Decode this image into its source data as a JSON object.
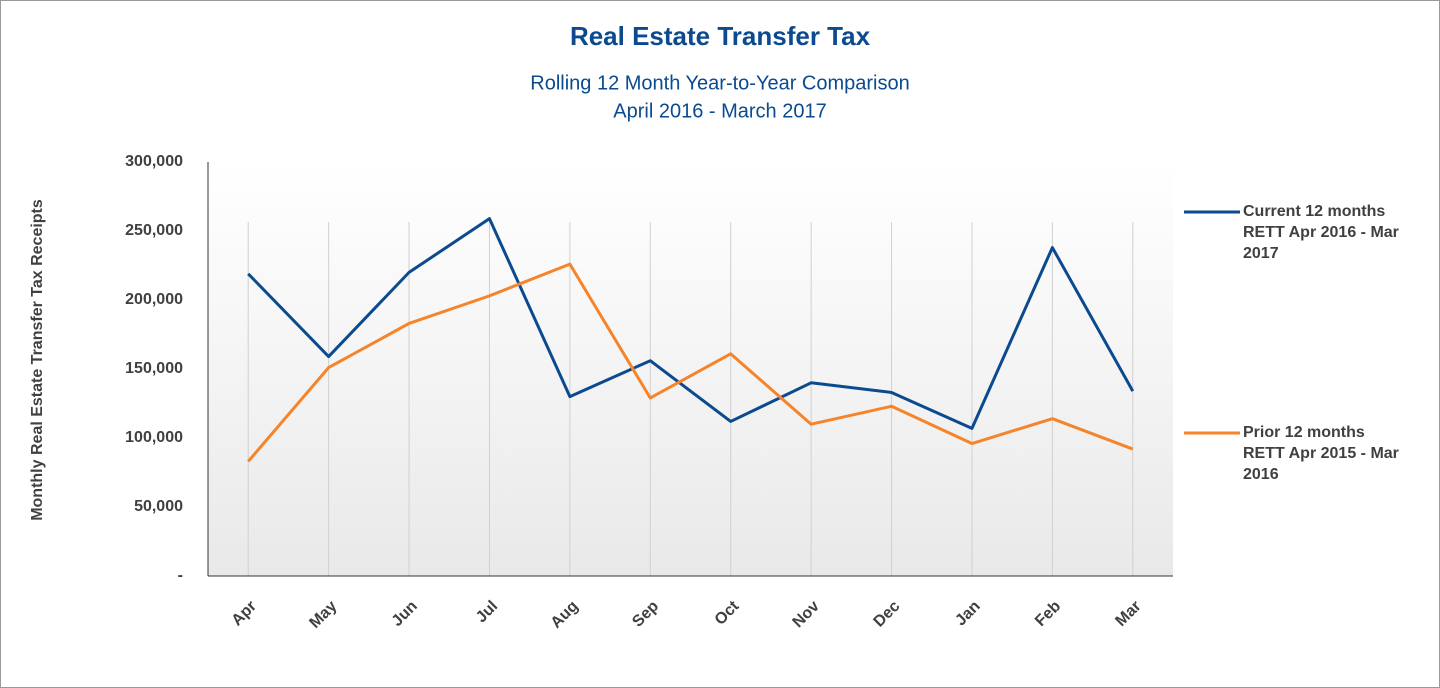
{
  "chart_data": {
    "type": "line",
    "title": "Real Estate Transfer Tax",
    "subtitle": [
      "Rolling 12 Month Year-to-Year Comparison",
      "April 2016 - March 2017"
    ],
    "y_label": "Monthly Real Estate Transfer Tax Receipts",
    "categories": [
      "Apr",
      "May",
      "Jun",
      "Jul",
      "Aug",
      "Sep",
      "Oct",
      "Nov",
      "Dec",
      "Jan",
      "Feb",
      "Mar"
    ],
    "series": [
      {
        "name": "Current 12 months RETT Apr 2016 - Mar 2017",
        "color": "#0b4a8f",
        "values": [
          219000,
          159000,
          220000,
          259000,
          130000,
          156000,
          112000,
          140000,
          133000,
          107000,
          238000,
          134000
        ]
      },
      {
        "name": "Prior 12 months RETT Apr 2015 - Mar 2016",
        "color": "#f5842a",
        "values": [
          83000,
          151000,
          183000,
          203000,
          226000,
          129000,
          161000,
          110000,
          123000,
          96000,
          114000,
          92000
        ]
      }
    ],
    "ylim": [
      0,
      300000
    ],
    "yticks": [
      {
        "value": 0,
        "label": "-"
      },
      {
        "value": 50000,
        "label": "50,000"
      },
      {
        "value": 100000,
        "label": "100,000"
      },
      {
        "value": 150000,
        "label": "150,000"
      },
      {
        "value": 200000,
        "label": "200,000"
      },
      {
        "value": 250000,
        "label": "250,000"
      },
      {
        "value": 300000,
        "label": "300,000"
      }
    ],
    "grid": "x",
    "legend": "right"
  }
}
